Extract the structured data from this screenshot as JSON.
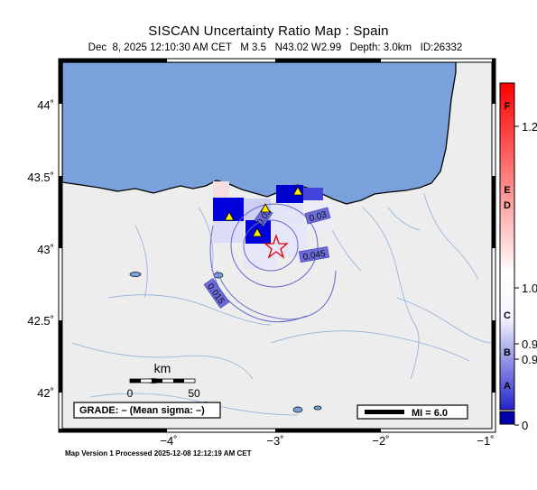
{
  "header": {
    "title": "SISCAN Uncertainty Ratio Map : Spain",
    "subtitle": "Dec  8, 2025 12:10:30 AM CET   M 3.5   N43.02 W2.99   Depth: 3.0km   ID:26332"
  },
  "footer": "Map Version 1 Processed 2025-12-08 12:12:19 AM CET",
  "map": {
    "lat_labels": [
      "44˚",
      "43.5˚",
      "43˚",
      "42.5˚",
      "42˚"
    ],
    "lon_labels": [
      "−4˚",
      "−3˚",
      "−2˚",
      "−1˚"
    ],
    "contour_labels": [
      "0.03",
      "0.03",
      "0.045",
      "0.015"
    ],
    "scale_bar": {
      "unit": "km",
      "ticks": [
        "0",
        "50"
      ]
    },
    "grade_box": "GRADE: – (Mean sigma: –)",
    "mi_legend": "MI = 6.0",
    "colors": {
      "sea": "#7aa1dc",
      "land": "#ededed",
      "epicenter": "#e00000",
      "station": "#ffee00"
    }
  },
  "colorbar": {
    "letters": [
      "F",
      "E",
      "D",
      "C",
      "B",
      "A"
    ],
    "values": [
      "1.2",
      "1.0",
      "0.9",
      "0.9",
      "0"
    ],
    "colors": {
      "high": "#ff0000",
      "mid": "#ffffff",
      "low": "#2222cc",
      "bottom": "#0000aa"
    }
  }
}
